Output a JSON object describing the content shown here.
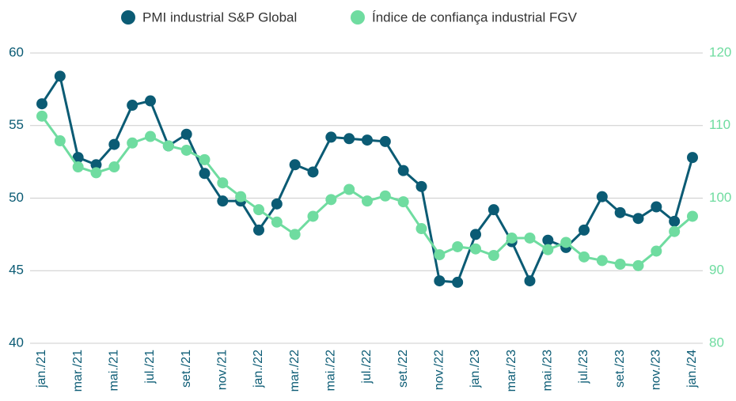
{
  "chart_data": {
    "type": "line",
    "categories": [
      "jan./21",
      null,
      "mar./21",
      null,
      "mai./21",
      null,
      "jul./21",
      null,
      "set./21",
      null,
      "nov./21",
      null,
      "jan./22",
      null,
      "mar./22",
      null,
      "mai./22",
      null,
      "jul./22",
      null,
      "set./22",
      null,
      "nov./22",
      null,
      "jan./23",
      null,
      "mar./23",
      null,
      "mai./23",
      null,
      "jul./23",
      null,
      "set./23",
      null,
      "nov./23",
      null,
      "jan./24"
    ],
    "series": [
      {
        "name": "PMI industrial S&P Global",
        "color": "#0b5b74",
        "axis": "y",
        "values": [
          56.5,
          58.4,
          52.8,
          52.3,
          53.7,
          56.4,
          56.7,
          53.6,
          54.4,
          51.7,
          49.8,
          49.8,
          47.8,
          49.6,
          52.3,
          51.8,
          54.2,
          54.1,
          54.0,
          53.9,
          51.9,
          50.8,
          44.3,
          44.2,
          47.5,
          49.2,
          47.0,
          44.3,
          47.1,
          46.6,
          47.8,
          50.1,
          49.0,
          48.6,
          49.4,
          48.4,
          52.8
        ]
      },
      {
        "name": "Índice de confiança industrial FGV",
        "color": "#6fdca0",
        "axis": "y2",
        "values": [
          111.3,
          107.9,
          104.3,
          103.5,
          104.3,
          107.6,
          108.5,
          107.2,
          106.6,
          105.3,
          102.1,
          100.2,
          98.4,
          96.7,
          95.0,
          97.5,
          99.8,
          101.2,
          99.6,
          100.3,
          99.5,
          95.8,
          92.2,
          93.3,
          93.0,
          92.1,
          94.5,
          94.5,
          92.9,
          93.9,
          91.9,
          91.4,
          90.9,
          90.7,
          92.7,
          95.4,
          97.5
        ]
      }
    ],
    "ylim": [
      40,
      60
    ],
    "yticks": [
      40,
      45,
      50,
      55,
      60
    ],
    "y2lim": [
      80,
      120
    ],
    "y2ticks": [
      80,
      90,
      100,
      110,
      120
    ],
    "grid": true,
    "legend": "top"
  }
}
